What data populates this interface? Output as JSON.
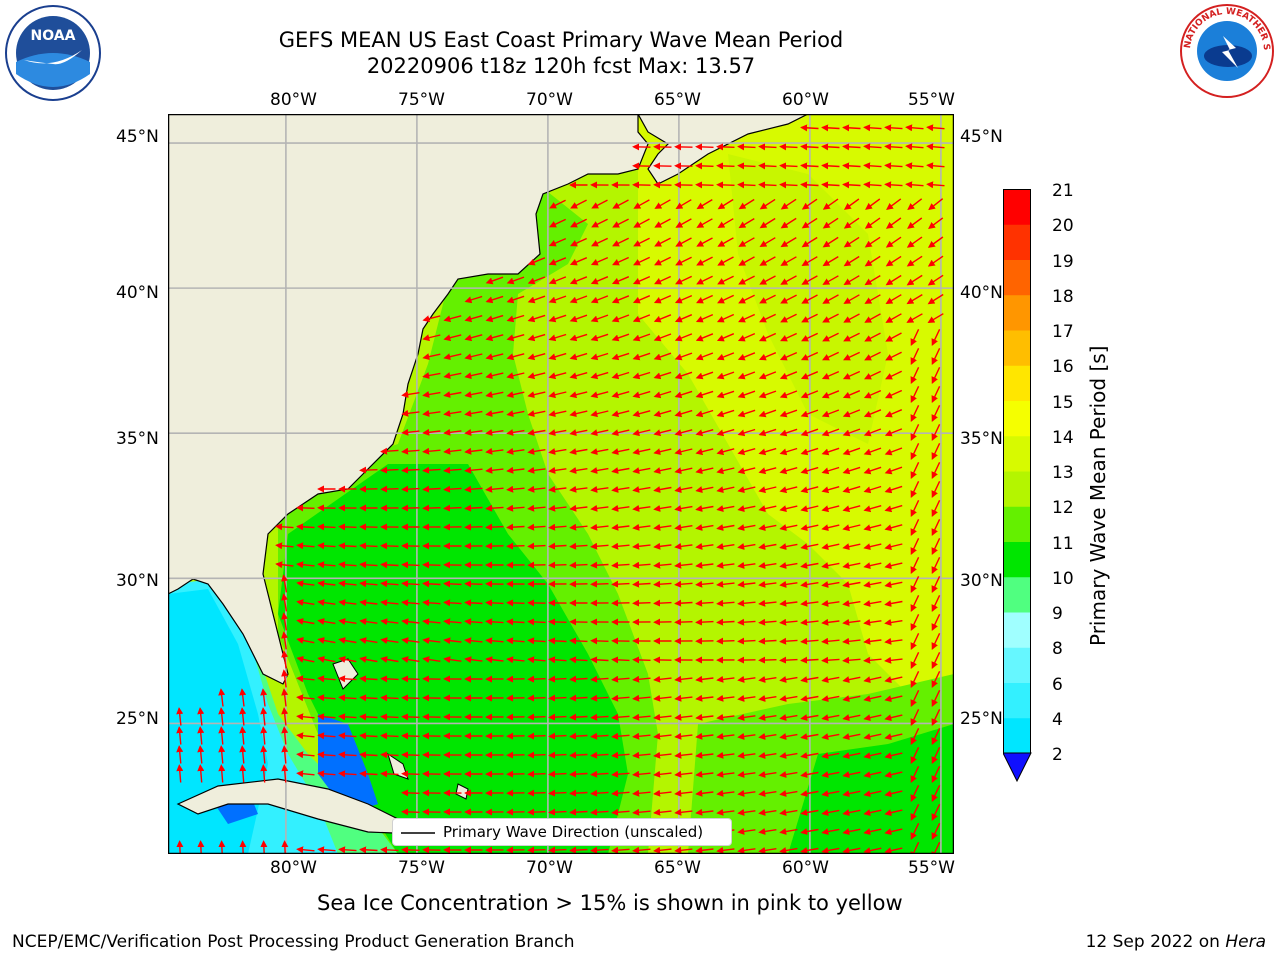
{
  "header": {
    "title_line1": "GEFS MEAN US East Coast Primary Wave Mean Period",
    "title_line2": "20220906 t18z 120h fcst   Max: 13.57"
  },
  "logos": {
    "left": {
      "icon": "noaa-logo",
      "text": "NOAA"
    },
    "right": {
      "icon": "nws-logo",
      "text": "NATIONAL WEATHER SERVICE"
    }
  },
  "map": {
    "lon_labels": [
      "80°W",
      "75°W",
      "70°W",
      "65°W",
      "60°W",
      "55°W"
    ],
    "lat_labels": [
      "45°N",
      "40°N",
      "35°N",
      "30°N",
      "25°N"
    ],
    "lon_range": [
      -84.5,
      -54.5
    ],
    "lat_range": [
      20.5,
      46
    ],
    "land_color": "#efeedc",
    "arrow_color": "#ff0000",
    "legend_label": "Primary Wave Direction (unscaled)"
  },
  "colorbar": {
    "title": "Primary Wave Mean Period [s]",
    "tick_labels": [
      "2",
      "4",
      "6",
      "8",
      "9",
      "10",
      "11",
      "12",
      "13",
      "14",
      "15",
      "16",
      "17",
      "18",
      "19",
      "20",
      "21"
    ],
    "colors": [
      "#0070ff",
      "#00e6ff",
      "#33f0ff",
      "#66f7ff",
      "#a0ffff",
      "#50ff80",
      "#00e600",
      "#64f000",
      "#b4f500",
      "#d7fa00",
      "#f5ff00",
      "#ffe600",
      "#ffbe00",
      "#ff9600",
      "#ff6400",
      "#ff3200",
      "#ff0000"
    ],
    "extend_color": "#1010ff"
  },
  "chart_data": {
    "type": "heatmap",
    "title": "GEFS MEAN US East Coast Primary Wave Mean Period",
    "subtitle": "20220906 t18z 120h fcst   Max: 13.57",
    "xlabel": "",
    "ylabel": "",
    "colorbar_label": "Primary Wave Mean Period [s]",
    "value_range": [
      2,
      21
    ],
    "max_value": 13.57
  },
  "footer": {
    "note": "Sea Ice Concentration > 15% is shown in pink to yellow",
    "credit": "NCEP/EMC/Verification Post Processing Product Generation Branch",
    "date": "12 Sep 2022 on",
    "machine": "Hera"
  }
}
